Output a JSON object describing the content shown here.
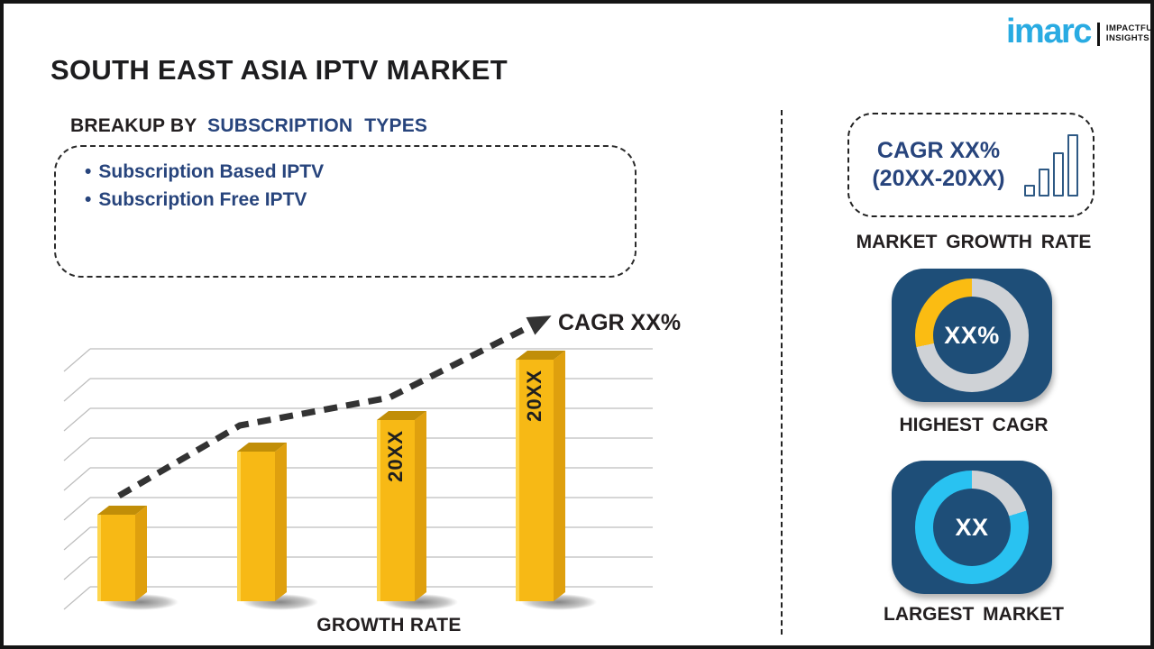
{
  "page": {
    "title": "SOUTH EAST ASIA IPTV MARKET",
    "logo": {
      "brand": "imarc",
      "tagline_line1": "IMPACTFUL",
      "tagline_line2": "INSIGHTS",
      "brand_color": "#29ABE2"
    }
  },
  "breakup": {
    "heading_prefix": "BREAKUP BY",
    "heading_highlight": "SUBSCRIPTION TYPES",
    "bullet": "•",
    "items": [
      "Subscription Based IPTV",
      "Subscription Free IPTV"
    ]
  },
  "chart_data": {
    "type": "bar",
    "title": "",
    "xlabel": "GROWTH RATE",
    "ylabel": "",
    "categories": [
      "",
      "",
      "20XX",
      "20XX"
    ],
    "values": [
      36,
      62,
      75,
      100
    ],
    "values_note": "relative bar heights in percent of tallest bar; actual figures masked as 20XX placeholders",
    "trend_label": "CAGR XX%",
    "grid": true,
    "legend": false,
    "bar_colors": {
      "front": "#F7B915",
      "side": "#DFA00E",
      "top": "#C18E08",
      "highlight": "#FFD957"
    },
    "trend_color": "#333333",
    "gridline_color": "#bdbdbd"
  },
  "sidebar": {
    "growth_box": {
      "line1": "CAGR XX%",
      "line2": "(20XX-20XX)"
    },
    "growth_caption": "MARKET GROWTH RATE",
    "card_color": "#1E4E78",
    "gauges": [
      {
        "value_label": "XX%",
        "caption": "HIGHEST CAGR",
        "segments": [
          {
            "color": "#CFD2D6",
            "from": 0,
            "to": 258
          },
          {
            "color": "#FBBC12",
            "from": 258,
            "to": 360
          }
        ]
      },
      {
        "value_label": "XX",
        "caption": "LARGEST MARKET",
        "segments": [
          {
            "color": "#CFD2D6",
            "from": 0,
            "to": 73
          },
          {
            "color": "#29C2F1",
            "from": 73,
            "to": 360
          }
        ]
      }
    ]
  }
}
